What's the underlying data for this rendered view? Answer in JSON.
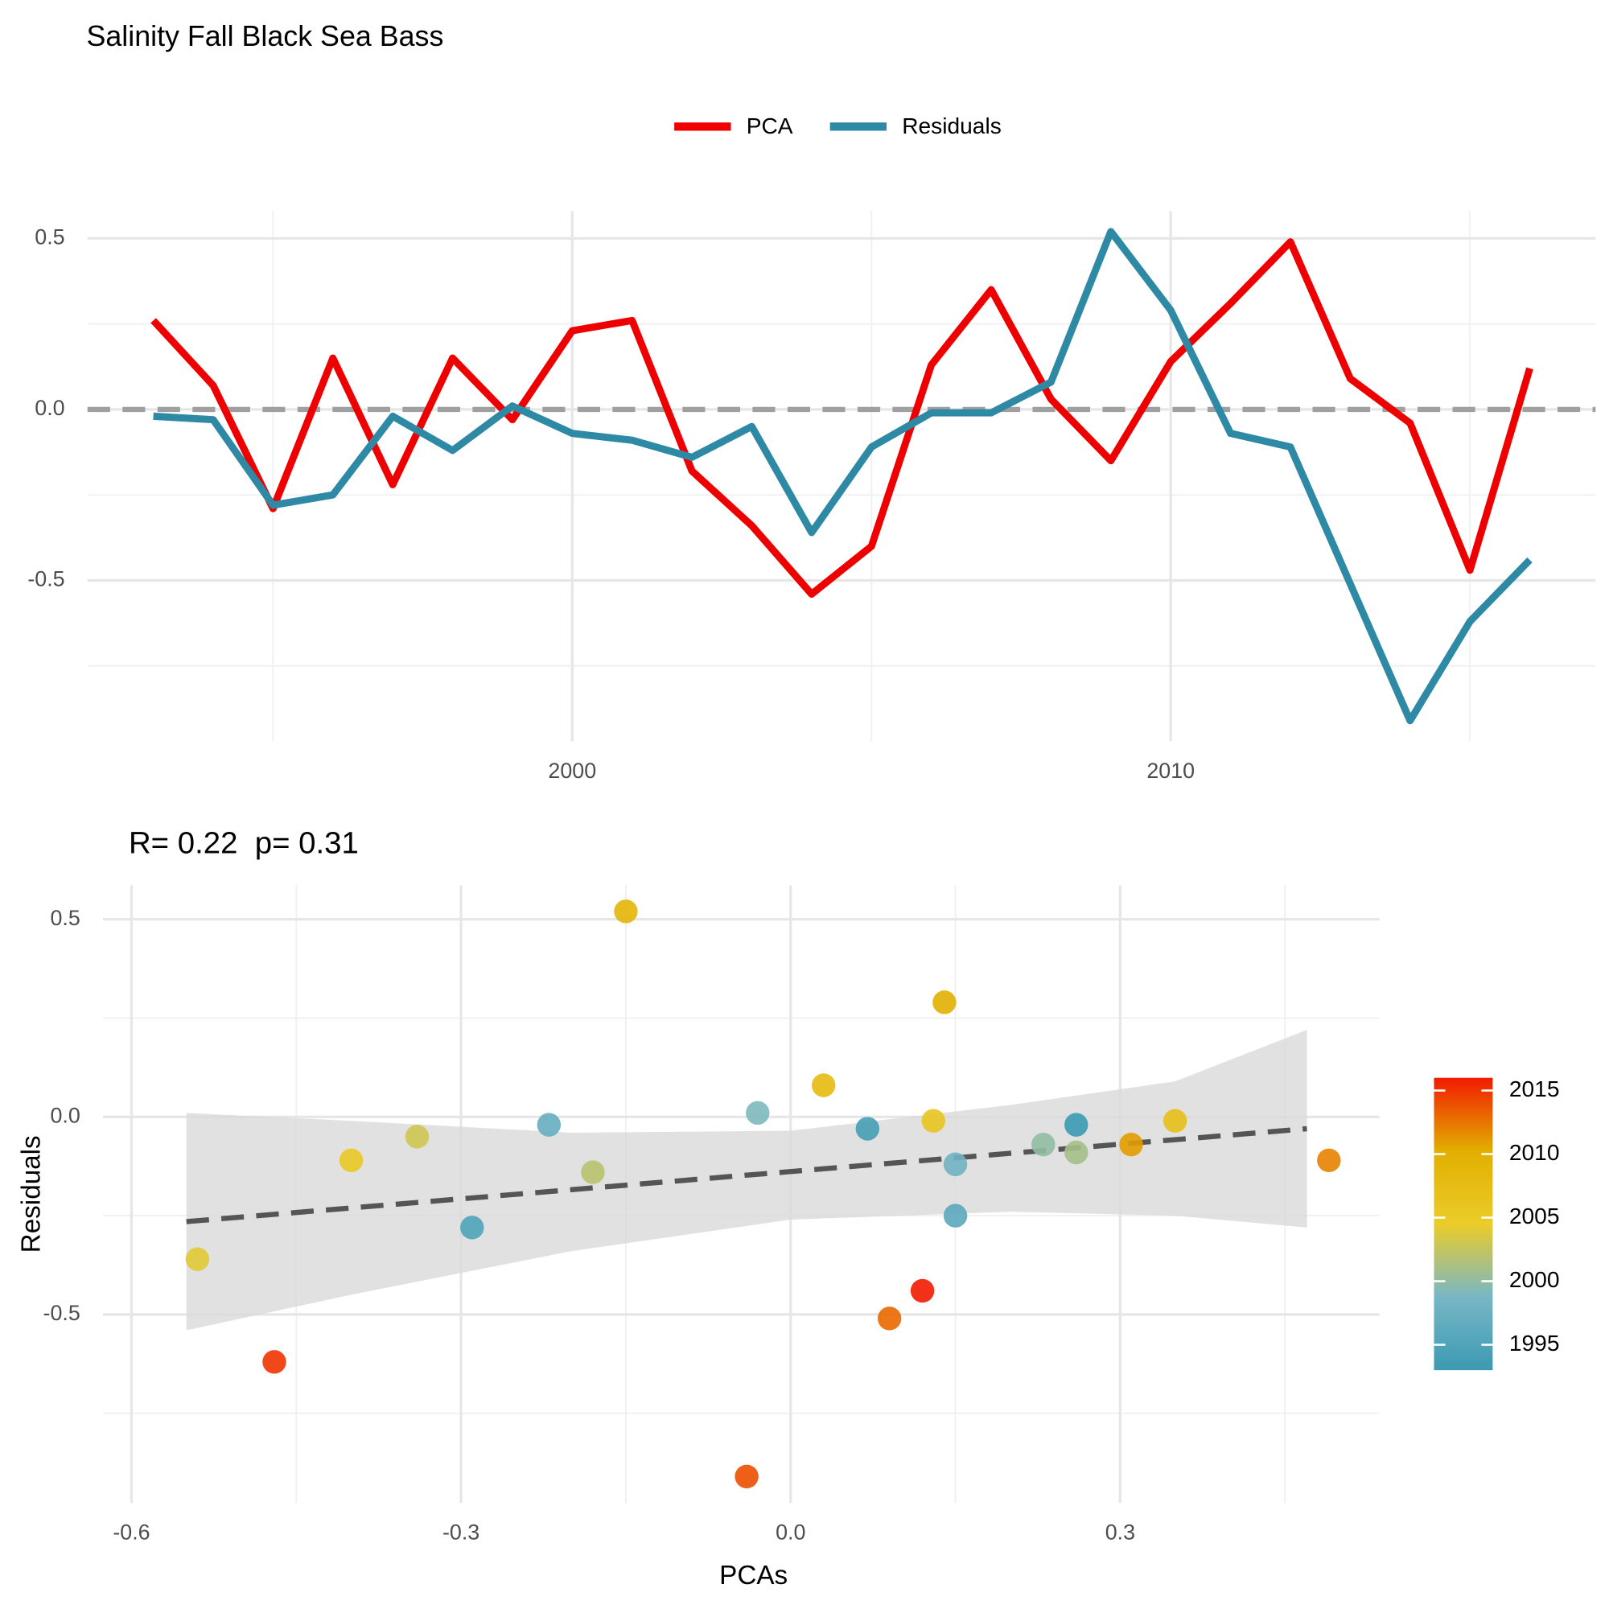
{
  "chart_data": [
    {
      "type": "line",
      "title": "Salinity Fall Black Sea Bass",
      "x": [
        1993,
        1994,
        1995,
        1996,
        1997,
        1998,
        1999,
        2000,
        2001,
        2002,
        2003,
        2004,
        2005,
        2006,
        2007,
        2008,
        2009,
        2010,
        2011,
        2012,
        2013,
        2014,
        2015,
        2016
      ],
      "series": [
        {
          "name": "PCA",
          "color": "#ee0000",
          "values": [
            0.26,
            0.07,
            -0.29,
            0.15,
            -0.22,
            0.15,
            -0.03,
            0.23,
            0.26,
            -0.18,
            -0.34,
            -0.54,
            -0.4,
            0.13,
            0.35,
            0.03,
            -0.15,
            0.14,
            0.31,
            0.49,
            0.09,
            -0.04,
            -0.47,
            0.12
          ]
        },
        {
          "name": "Residuals",
          "color": "#2e8aa4",
          "values": [
            -0.02,
            -0.03,
            -0.28,
            -0.25,
            -0.02,
            -0.12,
            0.01,
            -0.07,
            -0.09,
            -0.14,
            -0.05,
            -0.36,
            -0.11,
            -0.01,
            -0.01,
            0.08,
            0.52,
            0.29,
            -0.07,
            -0.11,
            -0.51,
            -0.91,
            -0.62,
            -0.44
          ]
        }
      ],
      "xlim": [
        1991.9,
        2017.1
      ],
      "xticks": [
        2000,
        2010
      ],
      "ylim": [
        -0.97,
        0.58
      ],
      "yticks": [
        {
          "value": -0.5,
          "label": "-0.5"
        },
        {
          "value": 0,
          "label": "0.0"
        },
        {
          "value": 0.5,
          "label": "0.5"
        }
      ],
      "hline": 0,
      "grid": true,
      "legend": "top"
    },
    {
      "type": "scatter",
      "title": "R= 0.22  p= 0.31",
      "xlabel": "PCAs",
      "ylabel": "Residuals",
      "x": [
        0.26,
        0.07,
        -0.29,
        0.15,
        -0.22,
        0.15,
        -0.03,
        0.23,
        0.26,
        -0.18,
        -0.34,
        -0.54,
        -0.4,
        0.13,
        0.35,
        0.03,
        -0.15,
        0.14,
        0.31,
        0.49,
        0.09,
        -0.04,
        -0.47,
        0.12
      ],
      "y": [
        -0.02,
        -0.03,
        -0.28,
        -0.25,
        -0.02,
        -0.12,
        0.01,
        -0.07,
        -0.09,
        -0.14,
        -0.05,
        -0.36,
        -0.11,
        -0.01,
        -0.01,
        0.08,
        0.52,
        0.29,
        -0.07,
        -0.11,
        -0.51,
        -0.91,
        -0.62,
        -0.44
      ],
      "years": [
        1993,
        1994,
        1995,
        1996,
        1997,
        1998,
        1999,
        2000,
        2001,
        2002,
        2003,
        2004,
        2005,
        2006,
        2007,
        2008,
        2009,
        2010,
        2011,
        2012,
        2013,
        2014,
        2015,
        2016
      ],
      "palette": [
        "#3B9AB2",
        "#78B7C5",
        "#EBCC2A",
        "#E1AF00",
        "#F21A00"
      ],
      "colorbar_lim": [
        1993,
        2016
      ],
      "colorbar_ticks": [
        1995,
        2000,
        2005,
        2010,
        2015
      ],
      "fit": {
        "x": [
          -0.55,
          0.47
        ],
        "y": [
          -0.265,
          -0.03
        ]
      },
      "band": {
        "x": [
          -0.55,
          -0.4,
          -0.2,
          0,
          0.2,
          0.35,
          0.47
        ],
        "upper": [
          0.01,
          -0.01,
          -0.04,
          -0.035,
          0.03,
          0.09,
          0.22
        ],
        "lower": [
          -0.54,
          -0.45,
          -0.34,
          -0.26,
          -0.24,
          -0.25,
          -0.28
        ]
      },
      "xlim": [
        -0.626,
        0.536
      ],
      "xticks": [
        {
          "value": -0.6,
          "label": "-0.6"
        },
        {
          "value": -0.3,
          "label": "-0.3"
        },
        {
          "value": 0,
          "label": "0.0"
        },
        {
          "value": 0.3,
          "label": "0.3"
        }
      ],
      "ylim": [
        -0.977,
        0.586
      ],
      "yticks": [
        {
          "value": -0.5,
          "label": "-0.5"
        },
        {
          "value": 0,
          "label": "0.0"
        },
        {
          "value": 0.5,
          "label": "0.5"
        }
      ],
      "grid": true
    }
  ]
}
